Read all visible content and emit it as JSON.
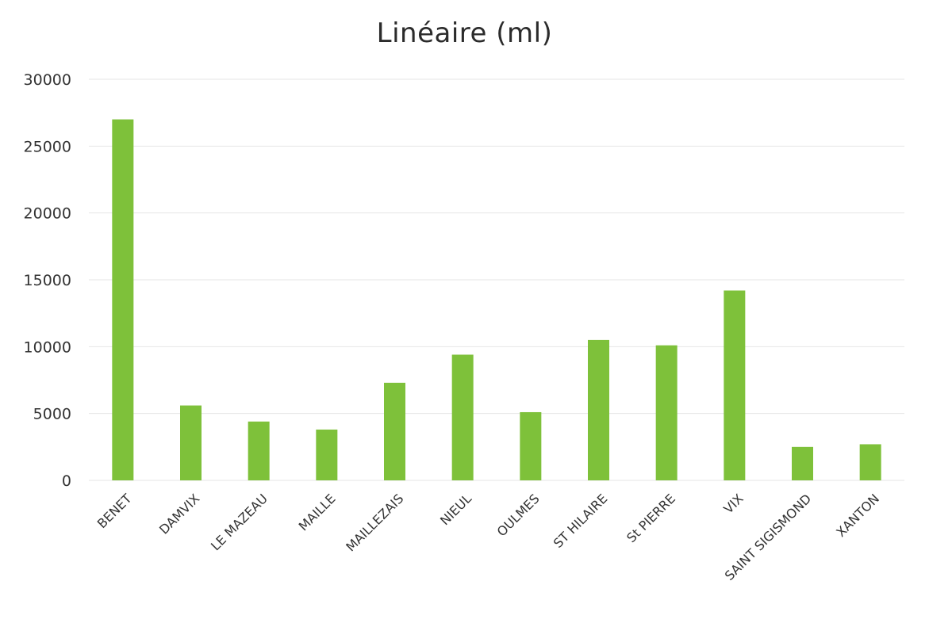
{
  "chart_data": {
    "type": "bar",
    "title": "Linéaire (ml)",
    "xlabel": "",
    "ylabel": "",
    "categories": [
      "BENET",
      "DAMVIX",
      "LE MAZEAU",
      "MAILLE",
      "MAILLEZAIS",
      "NIEUL",
      "OULMES",
      "ST HILAIRE",
      "St PIERRE",
      "VIX",
      "SAINT SIGISMOND",
      "XANTON"
    ],
    "values": [
      27000,
      5600,
      4400,
      3800,
      7300,
      9400,
      5100,
      10500,
      10100,
      14200,
      2500,
      2700
    ],
    "ylim": [
      0,
      30000
    ],
    "yticks": [
      "0",
      "5000",
      "10000",
      "15000",
      "20000",
      "25000",
      "30000"
    ],
    "grid": true,
    "legend": "none",
    "bar_color": "#7ec13a",
    "grid_color": "#e6e6e6"
  }
}
